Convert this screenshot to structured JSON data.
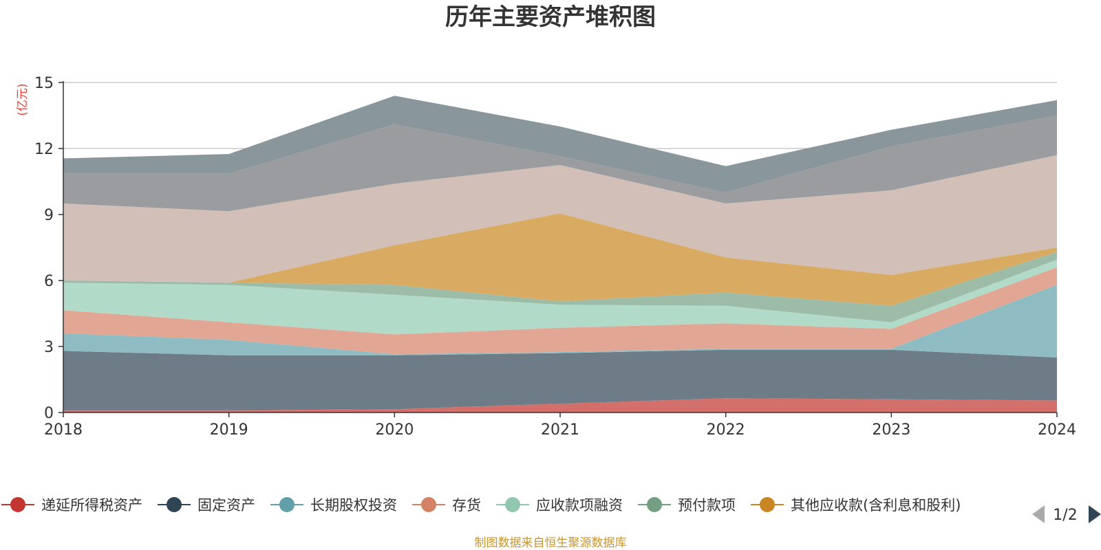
{
  "chart_data": {
    "type": "area",
    "stacked": true,
    "title": "历年主要资产堆积图",
    "ylabel": "(亿元)",
    "ylim": [
      0,
      15
    ],
    "yticks": [
      0,
      3,
      6,
      9,
      12,
      15
    ],
    "categories": [
      "2018",
      "2019",
      "2020",
      "2021",
      "2022",
      "2023",
      "2024"
    ],
    "grid": true,
    "legend_position": "bottom",
    "series": [
      {
        "name": "递延所得税资产",
        "color": "#c23531",
        "fill": "#d4706b",
        "values": [
          0.1,
          0.1,
          0.15,
          0.4,
          0.65,
          0.6,
          0.55
        ]
      },
      {
        "name": "固定资产",
        "color": "#2f4554",
        "fill": "#6e7c87",
        "values": [
          2.7,
          2.5,
          2.45,
          2.3,
          2.2,
          2.25,
          1.95
        ]
      },
      {
        "name": "长期股权投资",
        "color": "#61a0a8",
        "fill": "#8fbcc3",
        "values": [
          0.8,
          0.7,
          0.05,
          0.05,
          0.05,
          0.05,
          3.3
        ]
      },
      {
        "name": "存货",
        "color": "#d48265",
        "fill": "#e2a794",
        "values": [
          1.05,
          0.8,
          0.9,
          1.1,
          1.15,
          0.9,
          0.8
        ]
      },
      {
        "name": "应收款项融资",
        "color": "#91c7ae",
        "fill": "#b1dac8",
        "values": [
          1.25,
          1.7,
          1.8,
          1.05,
          0.8,
          0.3,
          0.35
        ]
      },
      {
        "name": "预付款项",
        "color": "#749f83",
        "fill": "#9cbca8",
        "values": [
          0.1,
          0.1,
          0.45,
          0.15,
          0.6,
          0.75,
          0.35
        ]
      },
      {
        "name": "其他应收款(含利息和股利)",
        "color": "#ca8622",
        "fill": "#d9aa62",
        "values": [
          0.0,
          0.0,
          1.8,
          4.0,
          1.6,
          1.4,
          0.2
        ]
      },
      {
        "name": "",
        "color": "#bda29a",
        "fill": "#d1bfb8",
        "values": [
          3.5,
          3.25,
          2.8,
          2.2,
          2.45,
          3.85,
          4.2
        ]
      },
      {
        "name": "",
        "color": "#6e7074",
        "fill": "#9a9c9f",
        "values": [
          1.35,
          1.7,
          2.7,
          0.4,
          0.5,
          2.0,
          1.8
        ]
      },
      {
        "name": "",
        "color": "#546570",
        "fill": "#89969b",
        "values": [
          0.7,
          0.9,
          1.3,
          1.35,
          1.2,
          0.75,
          0.7
        ]
      }
    ]
  },
  "legend": {
    "visible_count": 7,
    "page_indicator": "1/2"
  },
  "source_note": "制图数据来自恒生聚源数据库"
}
